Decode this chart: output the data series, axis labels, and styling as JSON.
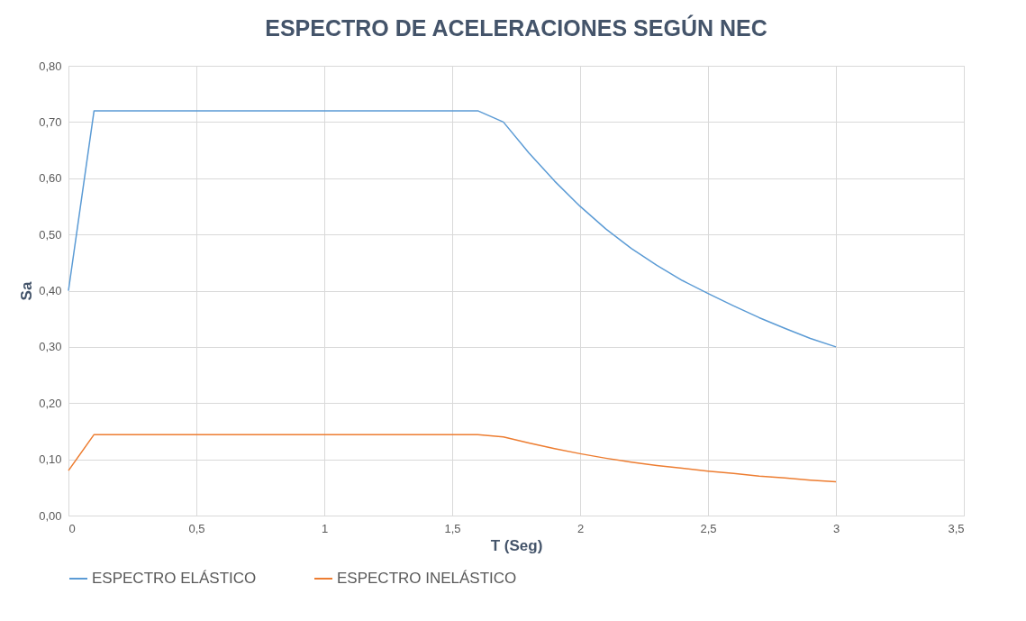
{
  "chart_data": {
    "type": "line",
    "title": "ESPECTRO DE ACELERACIONES SEGÚN NEC",
    "xlabel": "T (Seg)",
    "ylabel": "Sa",
    "x": [
      0,
      0.1,
      1.6,
      1.7,
      1.8,
      1.9,
      2.0,
      2.1,
      2.2,
      2.3,
      2.4,
      2.5,
      2.6,
      2.7,
      2.8,
      2.9,
      3.0
    ],
    "series": [
      {
        "name": "ESPECTRO ELÁSTICO",
        "color": "#5b9bd5",
        "values": [
          0.4,
          0.72,
          0.72,
          0.7,
          0.645,
          0.595,
          0.55,
          0.51,
          0.475,
          0.445,
          0.418,
          0.395,
          0.373,
          0.352,
          0.333,
          0.315,
          0.3
        ]
      },
      {
        "name": "ESPECTRO INELÁSTICO",
        "color": "#ed7d31",
        "values": [
          0.08,
          0.144,
          0.144,
          0.14,
          0.129,
          0.119,
          0.11,
          0.102,
          0.095,
          0.089,
          0.084,
          0.079,
          0.075,
          0.07,
          0.067,
          0.063,
          0.06
        ]
      }
    ],
    "xlim": [
      0,
      3.5
    ],
    "xticks": [
      0,
      {
        "value": 0.5,
        "label": "0,5"
      },
      1,
      {
        "value": 1.5,
        "label": "1,5"
      },
      2,
      {
        "value": 2.5,
        "label": "2,5"
      },
      3,
      {
        "value": 3.5,
        "label": "3,5"
      }
    ],
    "ylim": [
      0,
      0.8
    ],
    "yticks": [
      {
        "value": 0,
        "label": "0,00"
      },
      {
        "value": 0.1,
        "label": "0,10"
      },
      {
        "value": 0.2,
        "label": "0,20"
      },
      {
        "value": 0.3,
        "label": "0,30"
      },
      {
        "value": 0.4,
        "label": "0,40"
      },
      {
        "value": 0.5,
        "label": "0,50"
      },
      {
        "value": 0.6,
        "label": "0,60"
      },
      {
        "value": 0.7,
        "label": "0,70"
      },
      {
        "value": 0.8,
        "label": "0,80"
      }
    ],
    "grid": true,
    "legend": "bottom",
    "marker": "none",
    "line_style": "solid"
  }
}
